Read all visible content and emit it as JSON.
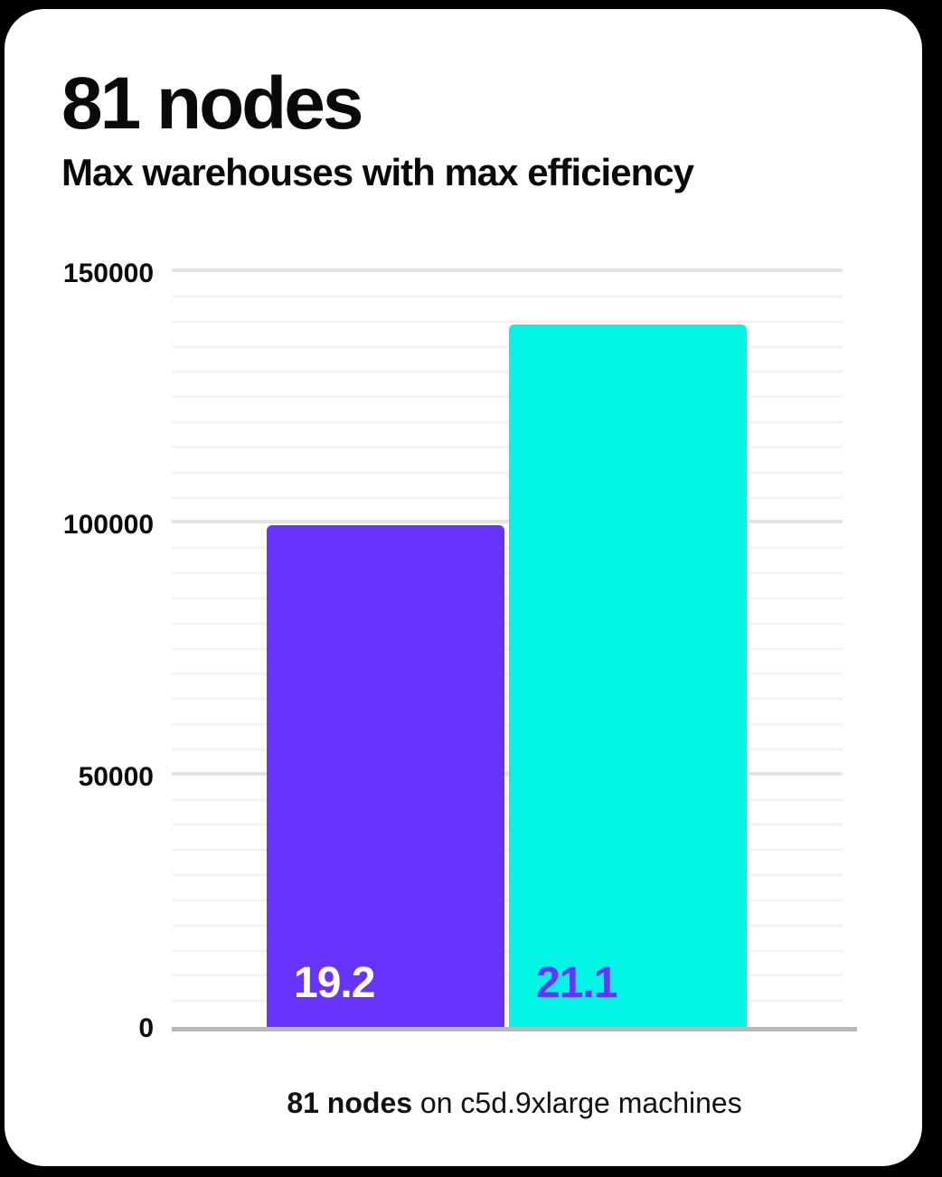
{
  "page": {
    "background_color": "#000000",
    "card_color": "#ffffff"
  },
  "header": {
    "title": "81 nodes",
    "subtitle": "Max warehouses with max efficiency"
  },
  "chart_data": {
    "type": "bar",
    "title": "81 nodes",
    "subtitle": "Max warehouses with max efficiency",
    "categories": [
      "19.2",
      "21.1"
    ],
    "values": [
      100000,
      140000
    ],
    "bar_colors": [
      "#6633ff",
      "#00f5e4"
    ],
    "bar_label_colors": [
      "#ffffff",
      "#6633ff"
    ],
    "xlabel": "",
    "ylabel": "",
    "ylim": [
      0,
      150000
    ],
    "yticks": [
      0,
      50000,
      100000,
      150000
    ],
    "ytick_labels": [
      "0",
      "50000",
      "100000",
      "150000"
    ],
    "minor_grid_step": 5000,
    "major_grid_step": 50000,
    "grid": "horizontal",
    "legend_position": "none",
    "grid_major_color": "#e3e3e3",
    "grid_minor_color": "#f3f3f3",
    "axis_line_color": "#b9b9b9",
    "tick_label_color": "#0b0b0b"
  },
  "caption": {
    "bold": "81 nodes",
    "rest": " on c5d.9xlarge machines"
  }
}
